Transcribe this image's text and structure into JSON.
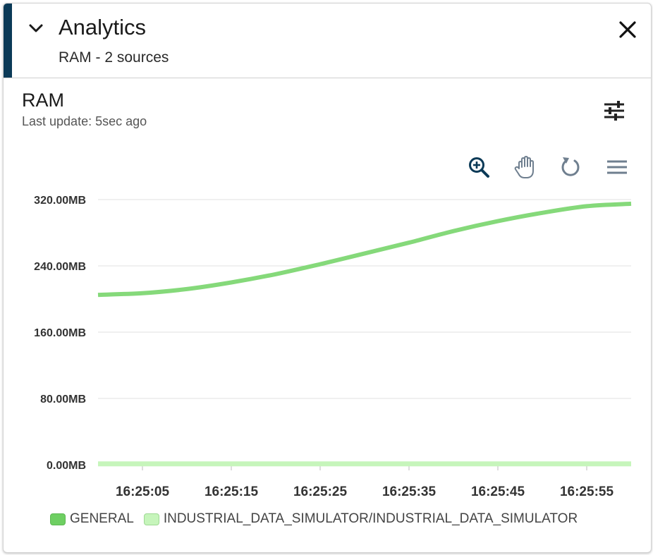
{
  "header": {
    "title": "Analytics",
    "subtitle": "RAM - 2 sources",
    "accent_color": "#0b3a57",
    "collapse_icon": "chevron-down-icon",
    "close_icon": "close-icon"
  },
  "card": {
    "title": "RAM",
    "last_update": "Last update: 5sec ago",
    "settings_icon": "sliders-icon"
  },
  "toolbar": {
    "tools": [
      "zoom-in-icon",
      "pan-hand-icon",
      "reset-icon",
      "menu-icon"
    ]
  },
  "chart_data": {
    "type": "line",
    "title": "RAM",
    "xlabel": "",
    "ylabel": "",
    "y_tick_labels": [
      "0.00MB",
      "80.00MB",
      "160.00MB",
      "240.00MB",
      "320.00MB"
    ],
    "y_ticks": [
      0,
      80,
      160,
      240,
      320
    ],
    "ylim": [
      0,
      320
    ],
    "x_tick_labels": [
      "16:25:05",
      "16:25:15",
      "16:25:25",
      "16:25:35",
      "16:25:45",
      "16:25:55"
    ],
    "x_ticks": [
      5,
      15,
      25,
      35,
      45,
      55
    ],
    "xlim": [
      0,
      60
    ],
    "grid": true,
    "legend_position": "bottom-left",
    "series": [
      {
        "name": "GENERAL",
        "color": "#85d97a",
        "swatch": "#6ecf62",
        "x": [
          0,
          5,
          10,
          15,
          20,
          25,
          30,
          35,
          40,
          45,
          50,
          55,
          60
        ],
        "values": [
          205,
          207,
          212,
          220,
          230,
          242,
          255,
          268,
          282,
          294,
          304,
          312,
          315
        ]
      },
      {
        "name": "INDUSTRIAL_DATA_SIMULATOR/INDUSTRIAL_DATA_SIMULATOR",
        "color": "#c6f5bb",
        "swatch": "#c6f5bb",
        "x": [
          0,
          60
        ],
        "values": [
          1,
          1
        ]
      }
    ]
  }
}
